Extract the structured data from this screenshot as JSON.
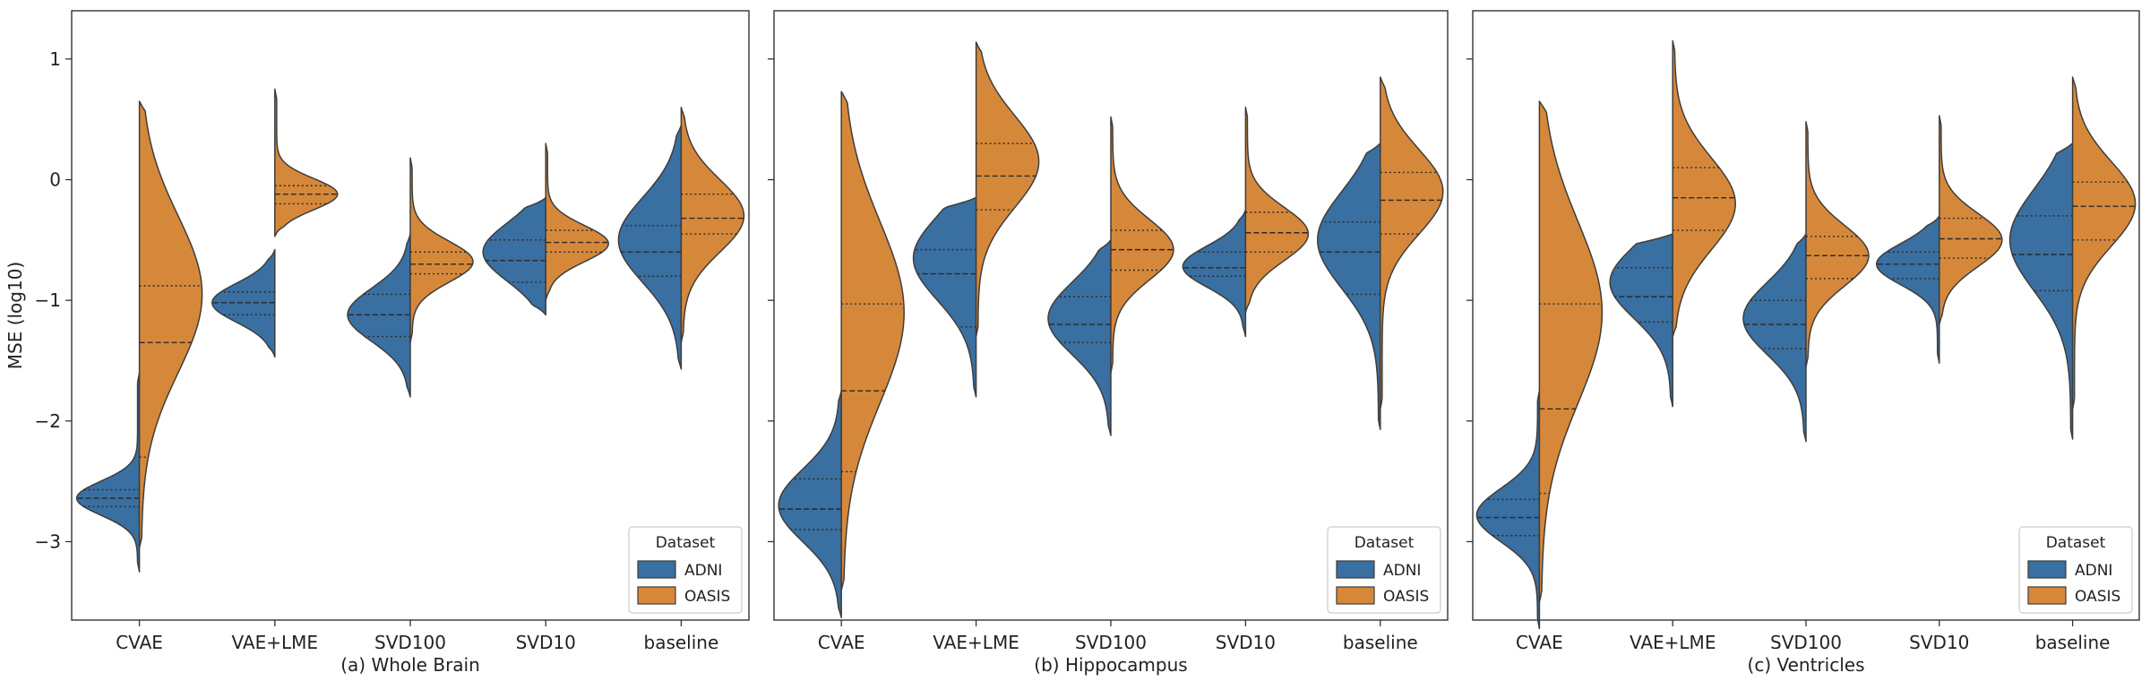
{
  "colors": {
    "ADNI": "#3a6fa1",
    "OASIS": "#d6883a",
    "outline": "#3d3d3d",
    "frame": "#333333"
  },
  "chart_data": {
    "type": "violin",
    "style": "split violins with inner quartile lines",
    "ylabel": "MSE (log10)",
    "ylim": [
      -3.65,
      1.4
    ],
    "yticks": [
      {
        "value": 1,
        "label": "1"
      },
      {
        "value": 0,
        "label": "0"
      },
      {
        "value": -1,
        "label": "−1"
      },
      {
        "value": -2,
        "label": "−2"
      },
      {
        "value": -3,
        "label": "−3"
      }
    ],
    "categories": [
      "CVAE",
      "VAE+LME",
      "SVD100",
      "SVD10",
      "baseline"
    ],
    "legend": {
      "title": "Dataset",
      "entries": [
        "ADNI",
        "OASIS"
      ],
      "placement": "lower-right"
    },
    "panels": [
      {
        "title": "(a) Whole Brain",
        "groups": [
          {
            "category": "CVAE",
            "ADNI": {
              "range": [
                -3.25,
                -1.6
              ],
              "quartiles": [
                -2.71,
                -2.64,
                -2.57
              ],
              "mode": -2.64,
              "spread": 0.14
            },
            "OASIS": {
              "range": [
                -3.05,
                0.65
              ],
              "quartiles": [
                -2.3,
                -1.35,
                -0.88
              ],
              "mode": -0.95,
              "spread": 0.65
            }
          },
          {
            "category": "VAE+LME",
            "ADNI": {
              "range": [
                -1.47,
                -0.58
              ],
              "quartiles": [
                -1.12,
                -1.02,
                -0.93
              ],
              "mode": -1.02,
              "spread": 0.16
            },
            "OASIS": {
              "range": [
                -0.47,
                0.75
              ],
              "quartiles": [
                -0.2,
                -0.12,
                -0.05
              ],
              "mode": -0.12,
              "spread": 0.13
            }
          },
          {
            "category": "SVD100",
            "ADNI": {
              "range": [
                -1.8,
                -0.45
              ],
              "quartiles": [
                -1.3,
                -1.12,
                -0.95
              ],
              "mode": -1.12,
              "spread": 0.22
            },
            "OASIS": {
              "range": [
                -1.35,
                0.18
              ],
              "quartiles": [
                -0.78,
                -0.7,
                -0.6
              ],
              "mode": -0.68,
              "spread": 0.17
            }
          },
          {
            "category": "SVD10",
            "ADNI": {
              "range": [
                -1.12,
                -0.15
              ],
              "quartiles": [
                -0.85,
                -0.67,
                -0.5
              ],
              "mode": -0.6,
              "spread": 0.24
            },
            "OASIS": {
              "range": [
                -1.0,
                0.3
              ],
              "quartiles": [
                -0.6,
                -0.52,
                -0.42
              ],
              "mode": -0.53,
              "spread": 0.15
            }
          },
          {
            "category": "baseline",
            "ADNI": {
              "range": [
                -1.57,
                0.45
              ],
              "quartiles": [
                -0.8,
                -0.6,
                -0.38
              ],
              "mode": -0.5,
              "spread": 0.35
            },
            "OASIS": {
              "range": [
                -1.35,
                0.6
              ],
              "quartiles": [
                -0.45,
                -0.32,
                -0.12
              ],
              "mode": -0.3,
              "spread": 0.3
            }
          }
        ]
      },
      {
        "title": "(b) Hippocampus",
        "groups": [
          {
            "category": "CVAE",
            "ADNI": {
              "range": [
                -3.63,
                -1.75
              ],
              "quartiles": [
                -2.9,
                -2.73,
                -2.48
              ],
              "mode": -2.7,
              "spread": 0.3
            },
            "OASIS": {
              "range": [
                -3.4,
                0.73
              ],
              "quartiles": [
                -2.42,
                -1.75,
                -1.03
              ],
              "mode": -1.1,
              "spread": 0.75
            }
          },
          {
            "category": "VAE+LME",
            "ADNI": {
              "range": [
                -1.8,
                -0.15
              ],
              "quartiles": [
                -1.22,
                -0.78,
                -0.58
              ],
              "mode": -0.65,
              "spread": 0.35
            },
            "OASIS": {
              "range": [
                -1.3,
                1.14
              ],
              "quartiles": [
                -0.25,
                0.03,
                0.3
              ],
              "mode": 0.15,
              "spread": 0.38
            }
          },
          {
            "category": "SVD100",
            "ADNI": {
              "range": [
                -2.12,
                -0.5
              ],
              "quartiles": [
                -1.35,
                -1.2,
                -0.97
              ],
              "mode": -1.15,
              "spread": 0.3
            },
            "OASIS": {
              "range": [
                -1.6,
                0.52
              ],
              "quartiles": [
                -0.75,
                -0.58,
                -0.42
              ],
              "mode": -0.58,
              "spread": 0.25
            }
          },
          {
            "category": "SVD10",
            "ADNI": {
              "range": [
                -1.3,
                -0.25
              ],
              "quartiles": [
                -0.8,
                -0.73,
                -0.6
              ],
              "mode": -0.72,
              "spread": 0.17
            },
            "OASIS": {
              "range": [
                -1.1,
                0.6
              ],
              "quartiles": [
                -0.6,
                -0.44,
                -0.27
              ],
              "mode": -0.45,
              "spread": 0.22
            }
          },
          {
            "category": "baseline",
            "ADNI": {
              "range": [
                -2.07,
                0.3
              ],
              "quartiles": [
                -0.95,
                -0.6,
                -0.35
              ],
              "mode": -0.5,
              "spread": 0.4
            },
            "OASIS": {
              "range": [
                -1.9,
                0.85
              ],
              "quartiles": [
                -0.45,
                -0.17,
                0.06
              ],
              "mode": -0.1,
              "spread": 0.35
            }
          }
        ]
      },
      {
        "title": "(c) Ventricles",
        "groups": [
          {
            "category": "CVAE",
            "ADNI": {
              "range": [
                -3.72,
                -1.75
              ],
              "quartiles": [
                -2.95,
                -2.8,
                -2.65
              ],
              "mode": -2.78,
              "spread": 0.22
            },
            "OASIS": {
              "range": [
                -3.5,
                0.65
              ],
              "quartiles": [
                -2.6,
                -1.9,
                -1.03
              ],
              "mode": -1.1,
              "spread": 0.75
            }
          },
          {
            "category": "VAE+LME",
            "ADNI": {
              "range": [
                -1.88,
                -0.45
              ],
              "quartiles": [
                -1.18,
                -0.97,
                -0.73
              ],
              "mode": -0.85,
              "spread": 0.3
            },
            "OASIS": {
              "range": [
                -1.3,
                1.15
              ],
              "quartiles": [
                -0.42,
                -0.15,
                0.1
              ],
              "mode": -0.2,
              "spread": 0.38
            }
          },
          {
            "category": "SVD100",
            "ADNI": {
              "range": [
                -2.17,
                -0.45
              ],
              "quartiles": [
                -1.4,
                -1.2,
                -1.0
              ],
              "mode": -1.15,
              "spread": 0.3
            },
            "OASIS": {
              "range": [
                -1.55,
                0.48
              ],
              "quartiles": [
                -0.82,
                -0.63,
                -0.47
              ],
              "mode": -0.63,
              "spread": 0.25
            }
          },
          {
            "category": "SVD10",
            "ADNI": {
              "range": [
                -1.52,
                -0.3
              ],
              "quartiles": [
                -0.82,
                -0.7,
                -0.6
              ],
              "mode": -0.7,
              "spread": 0.17
            },
            "OASIS": {
              "range": [
                -1.2,
                0.53
              ],
              "quartiles": [
                -0.65,
                -0.49,
                -0.32
              ],
              "mode": -0.5,
              "spread": 0.22
            }
          },
          {
            "category": "baseline",
            "ADNI": {
              "range": [
                -2.15,
                0.3
              ],
              "quartiles": [
                -0.92,
                -0.62,
                -0.3
              ],
              "mode": -0.5,
              "spread": 0.42
            },
            "OASIS": {
              "range": [
                -1.9,
                0.85
              ],
              "quartiles": [
                -0.5,
                -0.22,
                -0.02
              ],
              "mode": -0.2,
              "spread": 0.35
            }
          }
        ]
      }
    ]
  }
}
